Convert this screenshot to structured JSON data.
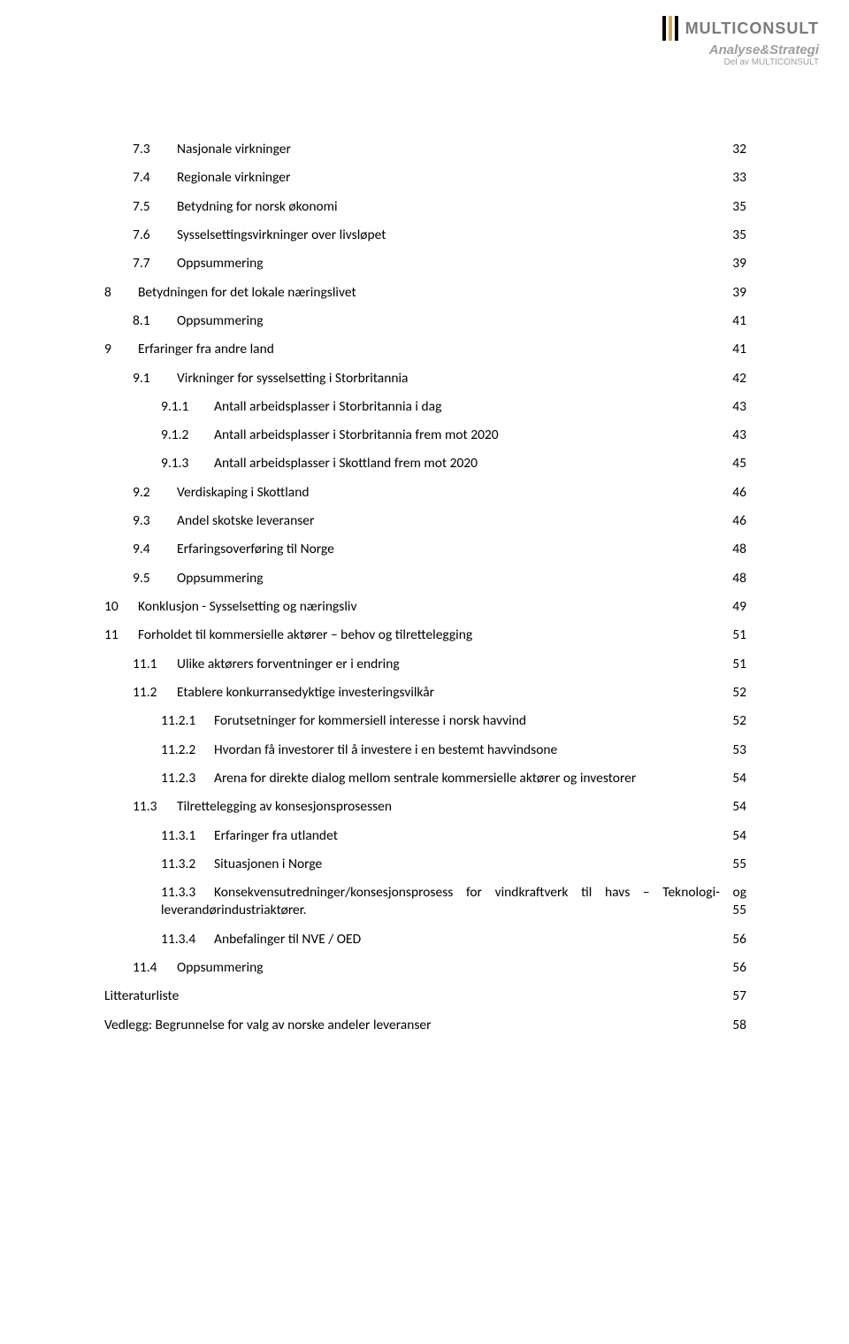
{
  "logo": {
    "main": "MULTICONSULT",
    "sub": "Analyse&Strategi",
    "subsub": "Del av MULTICONSULT",
    "bar_colors": [
      "#000000",
      "#d4a94e",
      "#000000"
    ]
  },
  "toc": [
    {
      "indent": 1,
      "num": "7.3",
      "label": "Nasjonale virkninger",
      "page": "32"
    },
    {
      "indent": 1,
      "num": "7.4",
      "label": "Regionale virkninger",
      "page": "33"
    },
    {
      "indent": 1,
      "num": "7.5",
      "label": "Betydning for norsk økonomi",
      "page": "35"
    },
    {
      "indent": 1,
      "num": "7.6",
      "label": "Sysselsettingsvirkninger over livsløpet",
      "page": "35"
    },
    {
      "indent": 1,
      "num": "7.7",
      "label": "Oppsummering",
      "page": "39"
    },
    {
      "indent": 0,
      "num": "8",
      "label": "Betydningen for det lokale næringslivet",
      "page": "39"
    },
    {
      "indent": 1,
      "num": "8.1",
      "label": "Oppsummering",
      "page": "41"
    },
    {
      "indent": 0,
      "num": "9",
      "label": "Erfaringer fra andre land",
      "page": "41"
    },
    {
      "indent": 1,
      "num": "9.1",
      "label": "Virkninger for sysselsetting i Storbritannia",
      "page": "42"
    },
    {
      "indent": 2,
      "num": "9.1.1",
      "label": "Antall arbeidsplasser i Storbritannia i dag",
      "page": "43"
    },
    {
      "indent": 2,
      "num": "9.1.2",
      "label": "Antall arbeidsplasser i Storbritannia frem mot 2020",
      "page": "43"
    },
    {
      "indent": 2,
      "num": "9.1.3",
      "label": "Antall arbeidsplasser i Skottland frem mot 2020",
      "page": "45"
    },
    {
      "indent": 1,
      "num": "9.2",
      "label": "Verdiskaping i Skottland",
      "page": "46"
    },
    {
      "indent": 1,
      "num": "9.3",
      "label": "Andel skotske leveranser",
      "page": "46"
    },
    {
      "indent": 1,
      "num": "9.4",
      "label": "Erfaringsoverføring til Norge",
      "page": "48"
    },
    {
      "indent": 1,
      "num": "9.5",
      "label": "Oppsummering",
      "page": "48"
    },
    {
      "indent": 0,
      "num": "10",
      "label": "Konklusjon - Sysselsetting og næringsliv",
      "page": "49"
    },
    {
      "indent": 0,
      "num": "11",
      "label": "Forholdet til kommersielle aktører – behov og tilrettelegging",
      "page": "51"
    },
    {
      "indent": 1,
      "num": "11.1",
      "label": "Ulike aktørers forventninger er i endring",
      "page": "51"
    },
    {
      "indent": 1,
      "num": "11.2",
      "label": "Etablere konkurransedyktige investeringsvilkår",
      "page": "52"
    },
    {
      "indent": 2,
      "num": "11.2.1",
      "label": "Forutsetninger for kommersiell interesse i norsk havvind",
      "page": "52"
    },
    {
      "indent": 2,
      "num": "11.2.2",
      "label": "Hvordan få investorer til å investere i en bestemt havvindsone",
      "page": "53"
    },
    {
      "indent": 2,
      "num": "11.2.3",
      "label": "Arena for direkte dialog mellom sentrale kommersielle aktører og investorer",
      "page": "54"
    },
    {
      "indent": 1,
      "num": "11.3",
      "label": "Tilrettelegging av konsesjonsprosessen",
      "page": "54"
    },
    {
      "indent": 2,
      "num": "11.3.1",
      "label": "Erfaringer fra utlandet",
      "page": "54"
    },
    {
      "indent": 2,
      "num": "11.3.2",
      "label": "Situasjonen i Norge",
      "page": "55"
    },
    {
      "indent": 2,
      "num": "11.3.3",
      "label": "Konsekvensutredninger/konsesjonsprosess  for  vindkraftverk  til  havs  –  Teknologi-  og",
      "page": "",
      "justify": true
    },
    {
      "indent": 2,
      "num": "",
      "label": "leverandørindustriaktører.",
      "page": "55",
      "wrap": true
    },
    {
      "indent": 2,
      "num": "11.3.4",
      "label": "Anbefalinger til NVE / OED",
      "page": "56"
    },
    {
      "indent": 1,
      "num": "11.4",
      "label": "Oppsummering",
      "page": "56"
    },
    {
      "indent": 0,
      "num": "",
      "label": "Litteraturliste",
      "page": "57",
      "nonum": true
    },
    {
      "indent": 0,
      "num": "",
      "label": "Vedlegg: Begrunnelse for valg av norske andeler leveranser",
      "page": "58",
      "nonum": true
    }
  ]
}
